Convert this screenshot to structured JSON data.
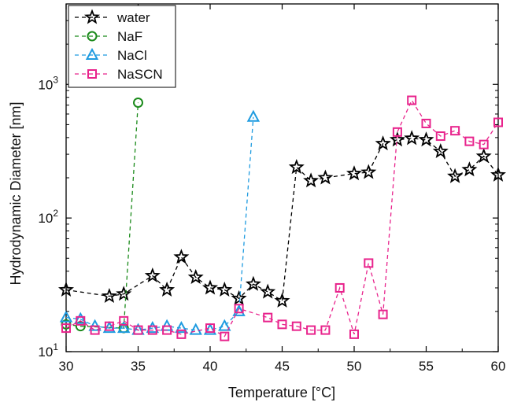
{
  "chart_data": {
    "type": "scatter",
    "title": "",
    "xlabel": "Temperature [°C]",
    "ylabel": "Hydrodynamic Diameter [nm]",
    "xlim": [
      30,
      60
    ],
    "ylim": [
      10,
      4000
    ],
    "yscale": "log",
    "xticks": [
      30,
      35,
      40,
      45,
      50,
      55,
      60
    ],
    "xtick_labels": [
      "30",
      "35",
      "40",
      "45",
      "50",
      "55",
      "60"
    ],
    "yticks": [
      10,
      100,
      1000
    ],
    "ytick_labels": [
      {
        "base": "10",
        "exp": "1"
      },
      {
        "base": "10",
        "exp": "2"
      },
      {
        "base": "10",
        "exp": "3"
      }
    ],
    "grid": false,
    "legend_position": "top-left",
    "series": [
      {
        "name": "water",
        "color": "#000000",
        "marker": "star",
        "x": [
          30,
          33,
          34,
          36,
          37,
          38,
          39,
          40,
          41,
          42,
          43,
          44,
          45,
          46,
          47,
          48,
          50,
          51,
          52,
          53,
          54,
          55,
          56,
          57,
          58,
          59,
          60
        ],
        "y": [
          29,
          26,
          27,
          37,
          29,
          51,
          36,
          30,
          29,
          25,
          32,
          28,
          24,
          240,
          190,
          200,
          215,
          220,
          360,
          385,
          395,
          385,
          315,
          205,
          230,
          290,
          210
        ]
      },
      {
        "name": "NaF",
        "color": "#1a8a1a",
        "marker": "circle",
        "x": [
          30,
          31,
          34,
          35
        ],
        "y": [
          16,
          15.5,
          15,
          730
        ]
      },
      {
        "name": "NaCl",
        "color": "#1e9be0",
        "marker": "triangle",
        "x": [
          30,
          31,
          32,
          33,
          34,
          35,
          36,
          37,
          38,
          39,
          40,
          41,
          42,
          43
        ],
        "y": [
          18,
          17.5,
          15.5,
          15,
          15,
          14.5,
          15,
          15.5,
          15,
          14.5,
          14.5,
          15.5,
          20,
          570
        ]
      },
      {
        "name": "NaSCN",
        "color": "#e8238c",
        "marker": "square",
        "x": [
          30,
          31,
          32,
          33,
          34,
          35,
          36,
          37,
          38,
          40,
          41,
          42,
          44,
          45,
          46,
          47,
          48,
          49,
          50,
          51,
          52,
          53,
          54,
          55,
          56,
          57,
          58,
          59,
          60
        ],
        "y": [
          15,
          17,
          14.5,
          15.5,
          17,
          14.5,
          14.5,
          14.5,
          13.5,
          15,
          13,
          21,
          18,
          16,
          15.5,
          14.5,
          14.5,
          30,
          13.5,
          46,
          19,
          440,
          760,
          510,
          410,
          450,
          375,
          355,
          520
        ]
      }
    ]
  }
}
